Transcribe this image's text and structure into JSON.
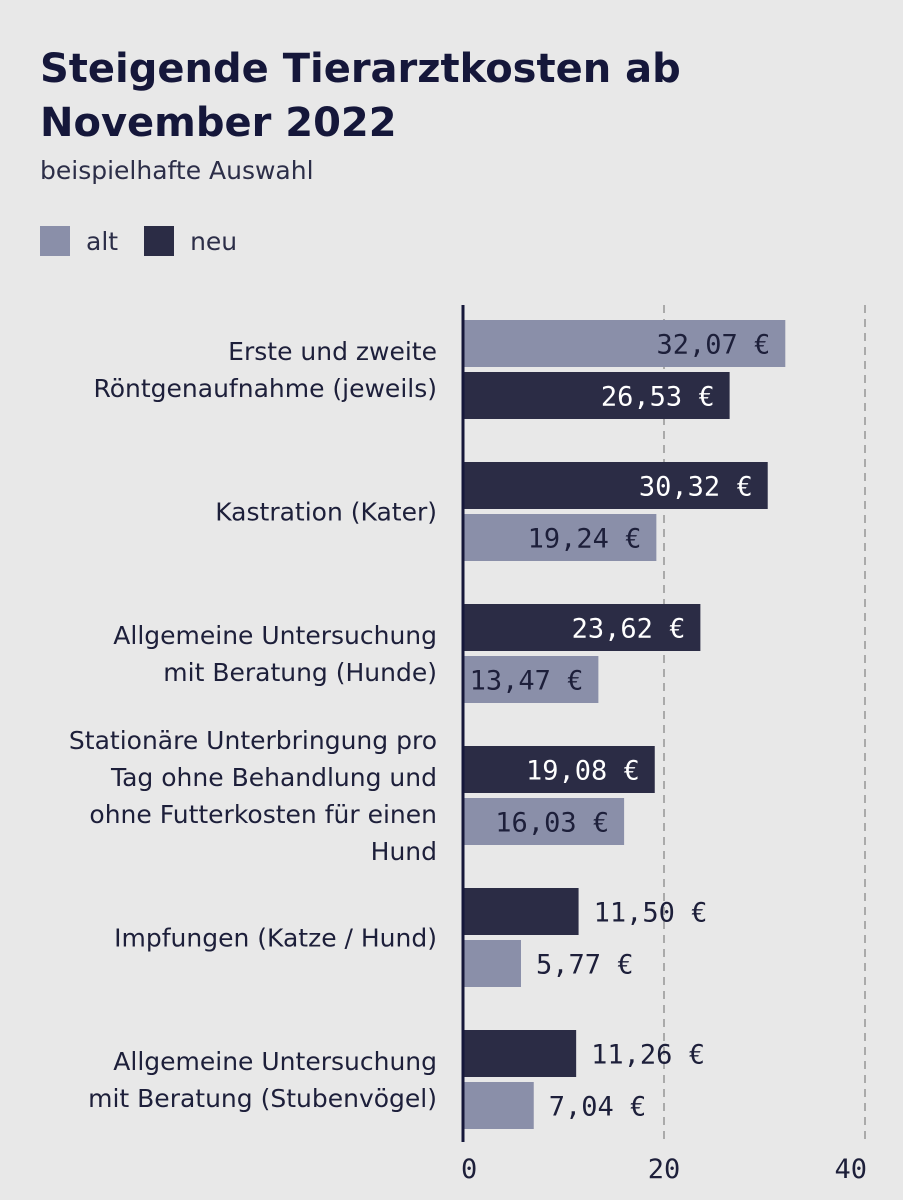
{
  "chart_data": {
    "type": "bar",
    "orientation": "horizontal",
    "title": "Steigende Tierarztkosten ab November 2022",
    "subtitle": "beispielhafte Auswahl",
    "legend": [
      {
        "name": "alt",
        "color": "#8a8fa9"
      },
      {
        "name": "neu",
        "color": "#2b2c45"
      }
    ],
    "xlim": [
      0,
      40
    ],
    "ticks": [
      "0",
      "20",
      "40"
    ],
    "groups": [
      {
        "label_lines": [
          "Erste und zweite",
          "Röntgenaufnahme (jeweils)"
        ],
        "bars": [
          {
            "series": "alt",
            "value": 32.07,
            "label": "32,07 €"
          },
          {
            "series": "neu",
            "value": 26.53,
            "label": "26,53 €"
          }
        ]
      },
      {
        "label_lines": [
          "Kastration (Kater)"
        ],
        "bars": [
          {
            "series": "neu",
            "value": 30.32,
            "label": "30,32 €"
          },
          {
            "series": "alt",
            "value": 19.24,
            "label": "19,24 €"
          }
        ]
      },
      {
        "label_lines": [
          "Allgemeine Untersuchung",
          "mit Beratung (Hunde)"
        ],
        "bars": [
          {
            "series": "neu",
            "value": 23.62,
            "label": "23,62 €"
          },
          {
            "series": "alt",
            "value": 13.47,
            "label": "13,47 €"
          }
        ]
      },
      {
        "label_lines": [
          "Stationäre Unterbringung pro",
          "Tag ohne Behandlung und",
          "ohne Futterkosten für einen",
          "Hund"
        ],
        "bars": [
          {
            "series": "neu",
            "value": 19.08,
            "label": "19,08 €"
          },
          {
            "series": "alt",
            "value": 16.03,
            "label": "16,03 €"
          }
        ]
      },
      {
        "label_lines": [
          "Impfungen (Katze / Hund)"
        ],
        "bars": [
          {
            "series": "neu",
            "value": 11.5,
            "label": "11,50 €"
          },
          {
            "series": "alt",
            "value": 5.77,
            "label": "5,77 €"
          }
        ]
      },
      {
        "label_lines": [
          "Allgemeine Untersuchung",
          "mit Beratung (Stubenvögel)"
        ],
        "bars": [
          {
            "series": "neu",
            "value": 11.26,
            "label": "11,26 €"
          },
          {
            "series": "alt",
            "value": 7.04,
            "label": "7,04 €"
          }
        ]
      }
    ]
  }
}
